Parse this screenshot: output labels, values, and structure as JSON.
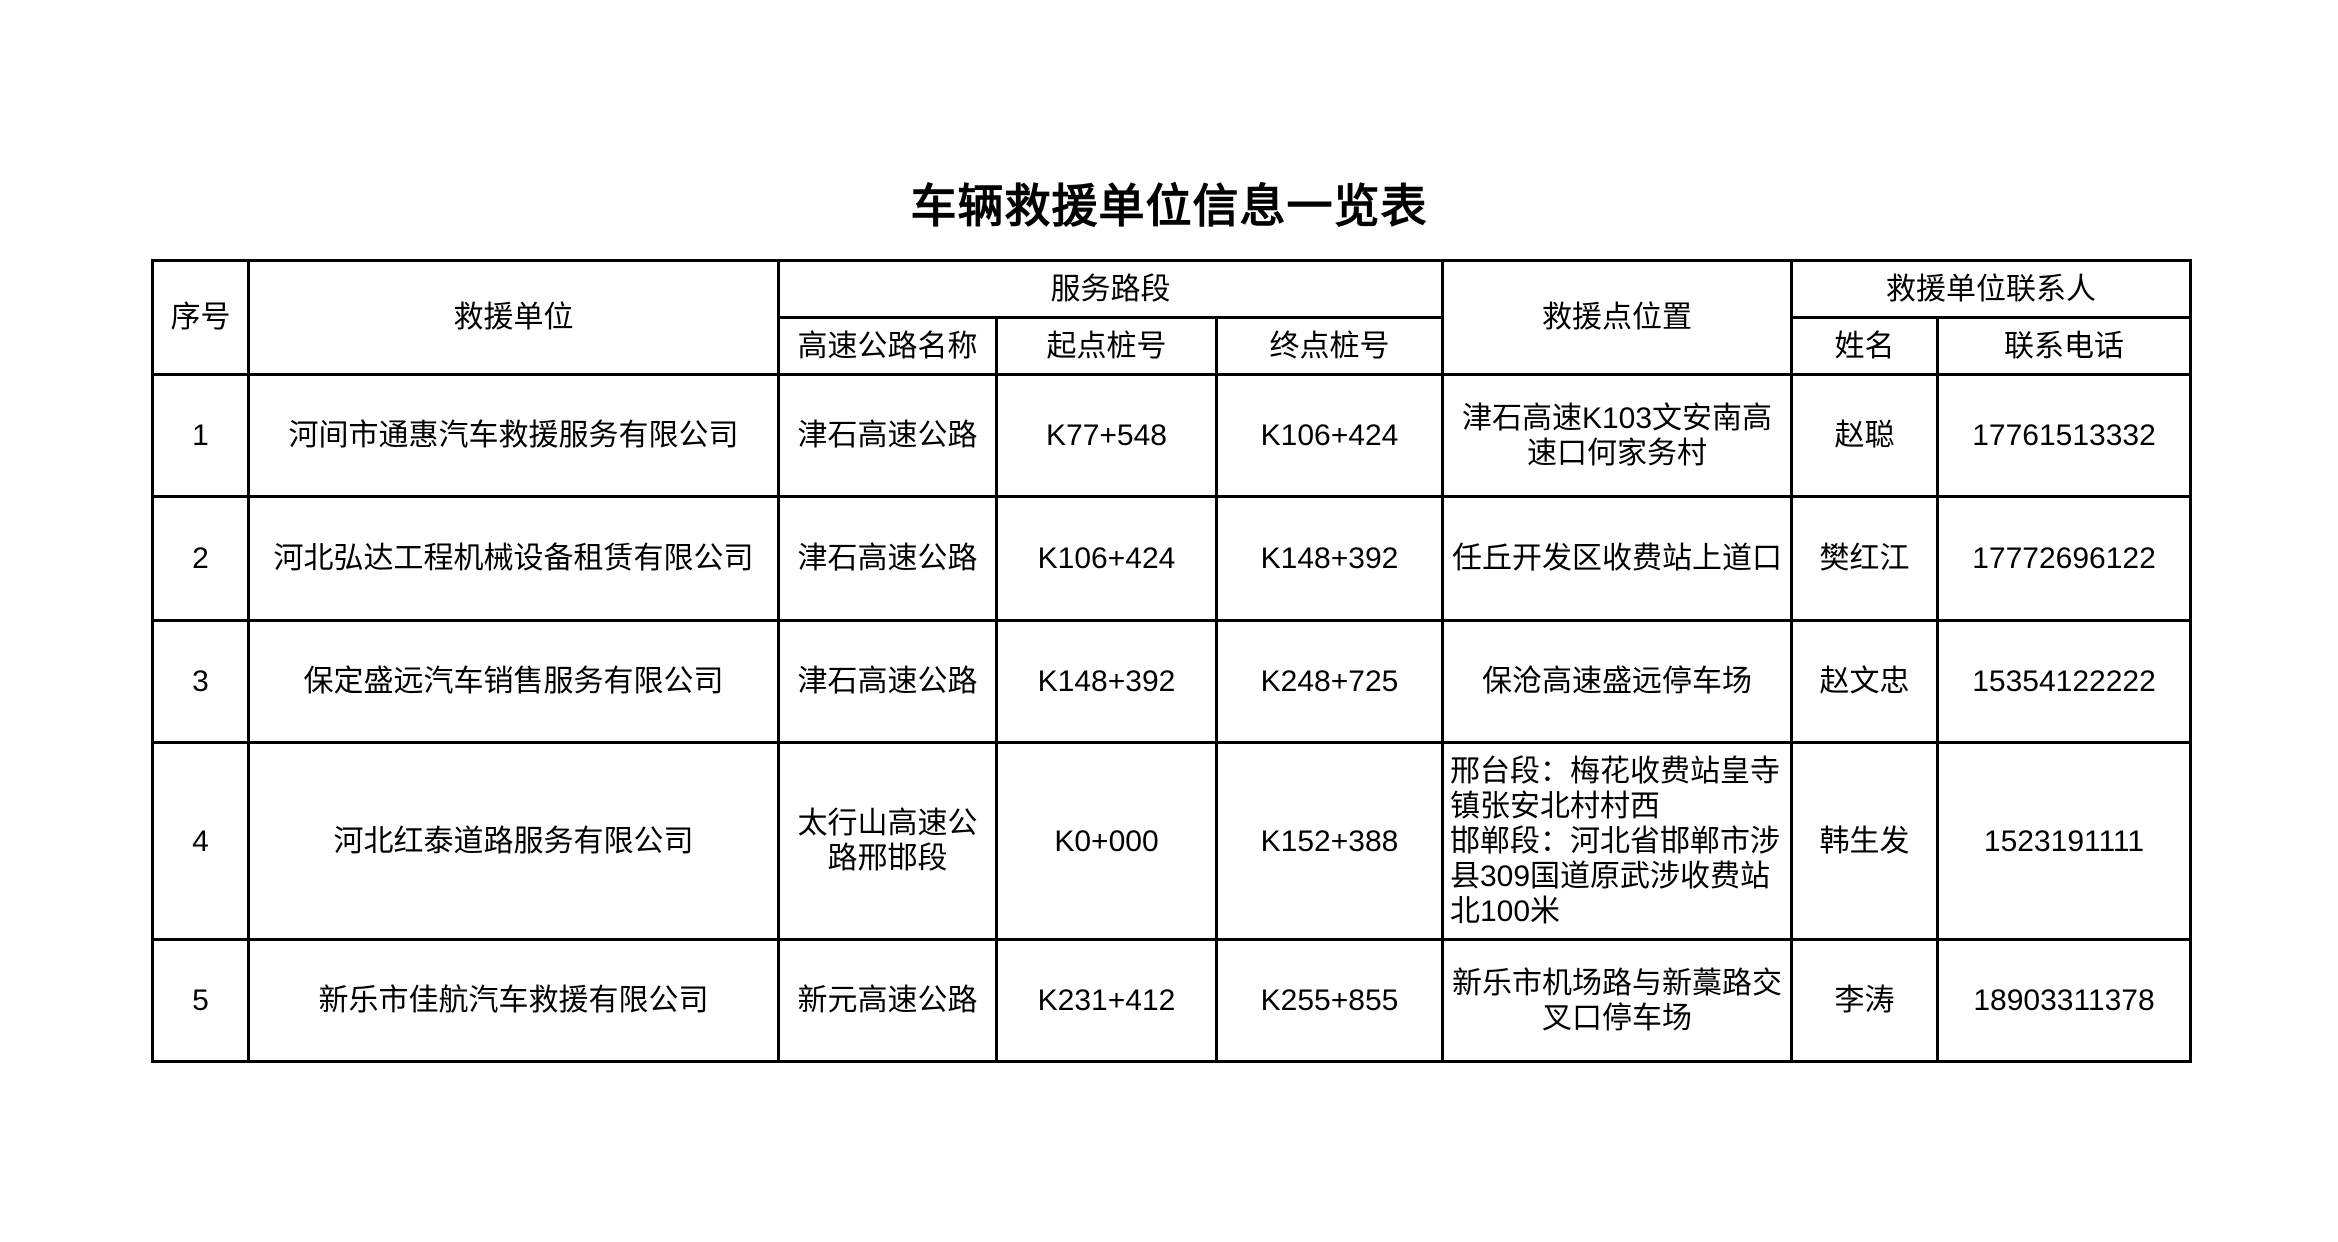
{
  "title": "车辆救援单位信息一览表",
  "headers": {
    "index": "序号",
    "unit": "救援单位",
    "service_section": "服务路段",
    "highway_name": "高速公路名称",
    "start_stake": "起点桩号",
    "end_stake": "终点桩号",
    "location": "救援点位置",
    "contact": "救援单位联系人",
    "name": "姓名",
    "phone": "联系电话"
  },
  "rows": [
    {
      "index": "1",
      "unit": "河间市通惠汽车救援服务有限公司",
      "highway": "津石高速公路",
      "start": "K77+548",
      "end": "K106+424",
      "location": "津石高速K103文安南高速口何家务村",
      "name": "赵聪",
      "phone": "17761513332"
    },
    {
      "index": "2",
      "unit": "河北弘达工程机械设备租赁有限公司",
      "highway": "津石高速公路",
      "start": "K106+424",
      "end": "K148+392",
      "location": "任丘开发区收费站上道口",
      "name": "樊红江",
      "phone": "17772696122"
    },
    {
      "index": "3",
      "unit": "保定盛远汽车销售服务有限公司",
      "highway": "津石高速公路",
      "start": "K148+392",
      "end": "K248+725",
      "location": "保沧高速盛远停车场",
      "name": "赵文忠",
      "phone": "15354122222"
    },
    {
      "index": "4",
      "unit": "河北红泰道路服务有限公司",
      "highway": "太行山高速公路邢邯段",
      "start": "K0+000",
      "end": "K152+388",
      "location": "邢台段：梅花收费站皇寺镇张安北村村西\n邯郸段：河北省邯郸市涉县309国道原武涉收费站北100米",
      "name": "韩生发",
      "phone": "1523191111"
    },
    {
      "index": "5",
      "unit": "新乐市佳航汽车救援有限公司",
      "highway": "新元高速公路",
      "start": "K231+412",
      "end": "K255+855",
      "location": "新乐市机场路与新藁路交叉口停车场",
      "name": "李涛",
      "phone": "18903311378"
    }
  ]
}
